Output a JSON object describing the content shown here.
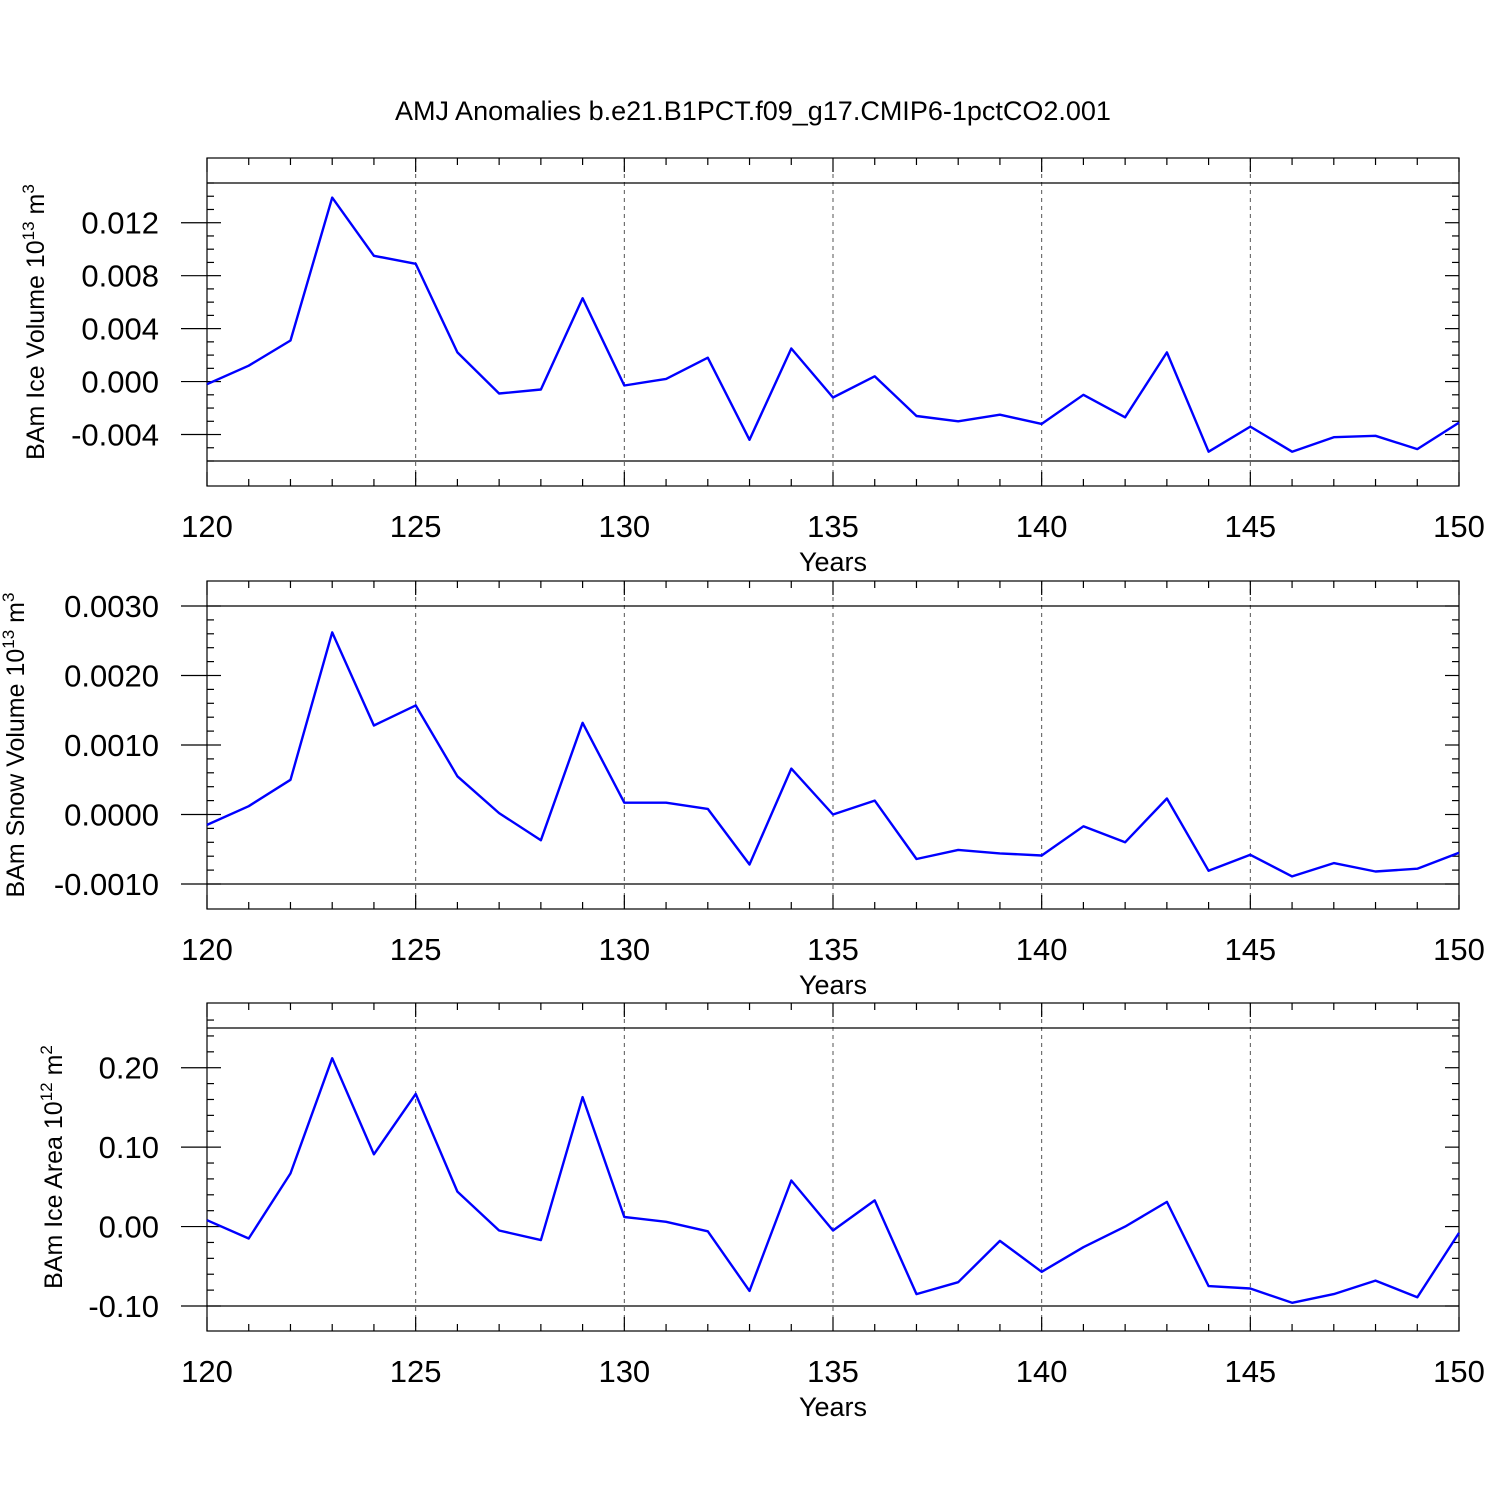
{
  "title": "AMJ Anomalies b.e21.B1PCT.f09_g17.CMIP6-1pctCO2.001",
  "colors": {
    "series": "#0000ff",
    "grid": "#555555",
    "axis": "#000000"
  },
  "chart_data": [
    {
      "type": "line",
      "xlabel": "Years",
      "ylabel_main": "BAm Ice Volume 10",
      "ylabel_exp": "13",
      "ylabel_unit": " m",
      "ylabel_unit_exp": "3",
      "xlim": [
        120,
        150
      ],
      "ylim": [
        -0.006,
        0.015
      ],
      "xticks": [
        120,
        125,
        130,
        135,
        140,
        145,
        150
      ],
      "xtick_labels": [
        "120",
        "125",
        "130",
        "135",
        "140",
        "145",
        "150"
      ],
      "yticks": [
        -0.004,
        0.0,
        0.004,
        0.008,
        0.012
      ],
      "ytick_labels": [
        "-0.004",
        "0.000",
        "0.004",
        "0.008",
        "0.012"
      ],
      "y_minor_step": 0.001,
      "grid": "vertical-dashed",
      "x": [
        120,
        121,
        122,
        123,
        124,
        125,
        126,
        127,
        128,
        129,
        130,
        131,
        132,
        133,
        134,
        135,
        136,
        137,
        138,
        139,
        140,
        141,
        142,
        143,
        144,
        145,
        146,
        147,
        148,
        149,
        150
      ],
      "values": [
        -0.0002,
        0.0012,
        0.0031,
        0.0139,
        0.0095,
        0.0089,
        0.0022,
        -0.0009,
        -0.0006,
        0.0063,
        -0.0003,
        0.0002,
        0.0018,
        -0.0044,
        0.0025,
        -0.0012,
        0.0004,
        -0.0026,
        -0.003,
        -0.0025,
        -0.0032,
        -0.001,
        -0.0027,
        0.0022,
        -0.0053,
        -0.0034,
        -0.0053,
        -0.0042,
        -0.0041,
        -0.0051,
        -0.0031
      ]
    },
    {
      "type": "line",
      "xlabel": "Years",
      "ylabel_main": "BAm Snow Volume 10",
      "ylabel_exp": "13",
      "ylabel_unit": " m",
      "ylabel_unit_exp": "3",
      "xlim": [
        120,
        150
      ],
      "ylim": [
        -0.001,
        0.003
      ],
      "xticks": [
        120,
        125,
        130,
        135,
        140,
        145,
        150
      ],
      "xtick_labels": [
        "120",
        "125",
        "130",
        "135",
        "140",
        "145",
        "150"
      ],
      "yticks": [
        -0.001,
        0.0,
        0.001,
        0.002,
        0.003
      ],
      "ytick_labels": [
        "-0.0010",
        "0.0000",
        "0.0010",
        "0.0020",
        "0.0030"
      ],
      "y_minor_step": 0.0002,
      "grid": "vertical-dashed",
      "x": [
        120,
        121,
        122,
        123,
        124,
        125,
        126,
        127,
        128,
        129,
        130,
        131,
        132,
        133,
        134,
        135,
        136,
        137,
        138,
        139,
        140,
        141,
        142,
        143,
        144,
        145,
        146,
        147,
        148,
        149,
        150
      ],
      "values": [
        -0.00015,
        0.00012,
        0.0005,
        0.00262,
        0.00128,
        0.00157,
        0.00055,
        2e-05,
        -0.00037,
        0.00132,
        0.00017,
        0.00017,
        8e-05,
        -0.00072,
        0.00066,
        0.0,
        0.0002,
        -0.00064,
        -0.00051,
        -0.00056,
        -0.00059,
        -0.00017,
        -0.0004,
        0.00023,
        -0.00081,
        -0.00058,
        -0.00089,
        -0.0007,
        -0.00082,
        -0.00078,
        -0.00055
      ]
    },
    {
      "type": "line",
      "xlabel": "Years",
      "ylabel_main": "BAm Ice Area 10",
      "ylabel_exp": "12",
      "ylabel_unit": " m",
      "ylabel_unit_exp": "2",
      "xlim": [
        120,
        150
      ],
      "ylim": [
        -0.1,
        0.25
      ],
      "xticks": [
        120,
        125,
        130,
        135,
        140,
        145,
        150
      ],
      "xtick_labels": [
        "120",
        "125",
        "130",
        "135",
        "140",
        "145",
        "150"
      ],
      "yticks": [
        -0.1,
        0.0,
        0.1,
        0.2
      ],
      "ytick_labels": [
        "-0.10",
        "0.00",
        "0.10",
        "0.20"
      ],
      "y_minor_step": 0.02,
      "grid": "vertical-dashed",
      "x": [
        120,
        121,
        122,
        123,
        124,
        125,
        126,
        127,
        128,
        129,
        130,
        131,
        132,
        133,
        134,
        135,
        136,
        137,
        138,
        139,
        140,
        141,
        142,
        143,
        144,
        145,
        146,
        147,
        148,
        149,
        150
      ],
      "values": [
        0.008,
        -0.015,
        0.067,
        0.212,
        0.091,
        0.167,
        0.044,
        -0.005,
        -0.017,
        0.163,
        0.012,
        0.006,
        -0.006,
        -0.081,
        0.058,
        -0.005,
        0.033,
        -0.085,
        -0.07,
        -0.018,
        -0.057,
        -0.026,
        0.0,
        0.031,
        -0.075,
        -0.078,
        -0.096,
        -0.085,
        -0.068,
        -0.089,
        -0.008
      ]
    }
  ]
}
